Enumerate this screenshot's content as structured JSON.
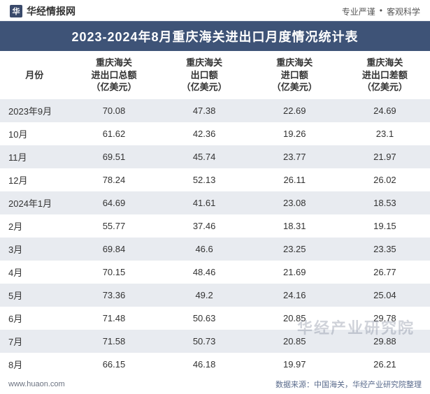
{
  "header": {
    "brand": "华经情报网",
    "tag1": "专业严谨",
    "dot": "•",
    "tag2": "客观科学"
  },
  "title": "2023-2024年8月重庆海关进出口月度情况统计表",
  "columns": [
    "月份",
    "重庆海关\n进出口总额\n（亿美元）",
    "重庆海关\n出口额\n（亿美元）",
    "重庆海关\n进口额\n（亿美元）",
    "重庆海关\n进出口差额\n（亿美元）"
  ],
  "rows": [
    {
      "month": "2023年9月",
      "total": "70.08",
      "export": "47.38",
      "import": "22.69",
      "diff": "24.69",
      "striped": true
    },
    {
      "month": "10月",
      "total": "61.62",
      "export": "42.36",
      "import": "19.26",
      "diff": "23.1",
      "striped": false
    },
    {
      "month": "11月",
      "total": "69.51",
      "export": "45.74",
      "import": "23.77",
      "diff": "21.97",
      "striped": true
    },
    {
      "month": "12月",
      "total": "78.24",
      "export": "52.13",
      "import": "26.11",
      "diff": "26.02",
      "striped": false
    },
    {
      "month": "2024年1月",
      "total": "64.69",
      "export": "41.61",
      "import": "23.08",
      "diff": "18.53",
      "striped": true
    },
    {
      "month": "2月",
      "total": "55.77",
      "export": "37.46",
      "import": "18.31",
      "diff": "19.15",
      "striped": false
    },
    {
      "month": "3月",
      "total": "69.84",
      "export": "46.6",
      "import": "23.25",
      "diff": "23.35",
      "striped": true
    },
    {
      "month": "4月",
      "total": "70.15",
      "export": "48.46",
      "import": "21.69",
      "diff": "26.77",
      "striped": false
    },
    {
      "month": "5月",
      "total": "73.36",
      "export": "49.2",
      "import": "24.16",
      "diff": "25.04",
      "striped": true
    },
    {
      "month": "6月",
      "total": "71.48",
      "export": "50.63",
      "import": "20.85",
      "diff": "29.78",
      "striped": false
    },
    {
      "month": "7月",
      "total": "71.58",
      "export": "50.73",
      "import": "20.85",
      "diff": "29.88",
      "striped": true
    },
    {
      "month": "8月",
      "total": "66.15",
      "export": "46.18",
      "import": "19.97",
      "diff": "26.21",
      "striped": false
    }
  ],
  "footer": {
    "url": "www.huaon.com",
    "source": "数据来源：中国海关，华经产业研究院整理"
  },
  "watermark": "华经产业研究院",
  "style": {
    "title_bg": "#3e5377",
    "title_fg": "#ffffff",
    "stripe_bg": "#e8ebf0",
    "plain_bg": "#ffffff",
    "text_color": "#333333",
    "font_size_title": 18,
    "font_size_cell": 13
  }
}
